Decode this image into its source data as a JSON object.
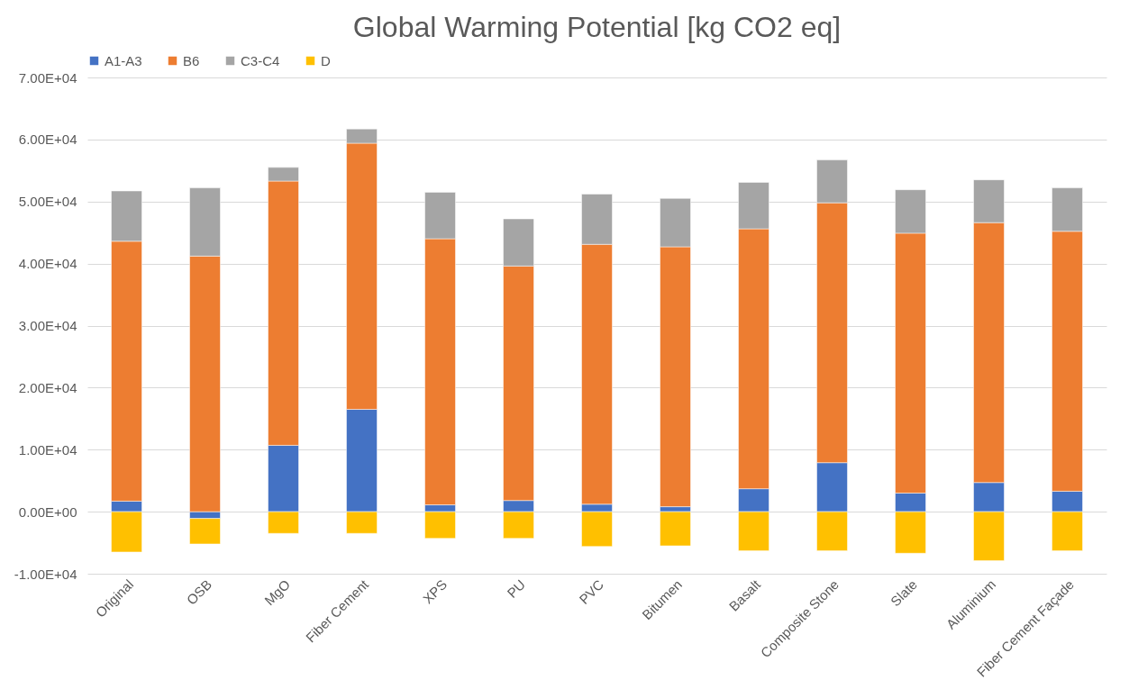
{
  "chart_data": {
    "type": "bar",
    "title": "Global Warming Potential [kg CO2 eq]",
    "stacked": true,
    "categories": [
      "Original",
      "OSB",
      "MgO",
      "Fiber Cement",
      "XPS",
      "PU",
      "PVC",
      "Bitumen",
      "Basalt",
      "Composite Stone",
      "Slate",
      "Aluminium",
      "Fiber Cement Façade"
    ],
    "series": [
      {
        "name": "A1-A3",
        "color": "#4472c4",
        "values": [
          1700,
          -1100,
          10700,
          16500,
          1100,
          1800,
          1200,
          800,
          3700,
          7900,
          3000,
          4700,
          3300
        ]
      },
      {
        "name": "B6",
        "color": "#ed7d31",
        "values": [
          41900,
          41200,
          42600,
          42900,
          42900,
          37800,
          41900,
          41900,
          41900,
          41900,
          41900,
          41900,
          41900
        ]
      },
      {
        "name": "C3-C4",
        "color": "#a5a5a5",
        "values": [
          8100,
          11000,
          2200,
          2300,
          7500,
          7600,
          8100,
          7800,
          7500,
          6900,
          7000,
          6900,
          7000
        ]
      },
      {
        "name": "D",
        "color": "#ffc000",
        "values": [
          -6500,
          -4100,
          -3500,
          -3500,
          -4300,
          -4300,
          -5600,
          -5500,
          -6300,
          -6300,
          -6700,
          -7900,
          -6300
        ]
      }
    ],
    "ylim": [
      -10000,
      70000
    ],
    "yticks": [
      {
        "value": -10000,
        "label": "-1.00E+04"
      },
      {
        "value": 0,
        "label": "0.00E+00"
      },
      {
        "value": 10000,
        "label": "1.00E+04"
      },
      {
        "value": 20000,
        "label": "2.00E+04"
      },
      {
        "value": 30000,
        "label": "3.00E+04"
      },
      {
        "value": 40000,
        "label": "4.00E+04"
      },
      {
        "value": 50000,
        "label": "5.00E+04"
      },
      {
        "value": 60000,
        "label": "6.00E+04"
      },
      {
        "value": 70000,
        "label": "7.00E+04"
      }
    ],
    "grid": "y",
    "legend": "top"
  }
}
